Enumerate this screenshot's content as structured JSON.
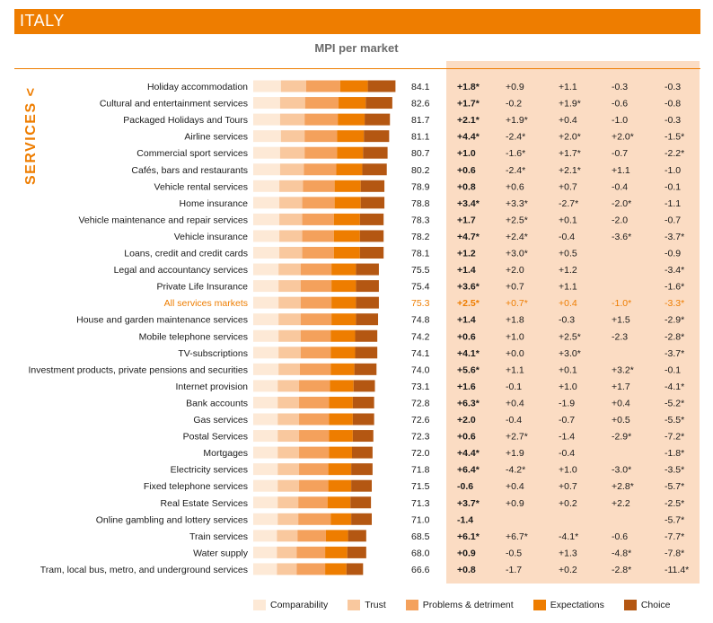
{
  "title": "ITALY",
  "side_label": "SERVICES <",
  "chart_data": {
    "type": "bar",
    "stacked": true,
    "title": "MPI per market",
    "legend_position": "bottom",
    "series_names": [
      "Comparability",
      "Trust",
      "Problems & detriment",
      "Expectations",
      "Choice"
    ],
    "colors": [
      "#fde9d6",
      "#f9c89e",
      "#f4a15c",
      "#ee7d00",
      "#b45712"
    ],
    "highlight_color": "#ee7d00",
    "categories": [
      {
        "label": "Holiday accommodation",
        "mpi": "84.1",
        "segments": [
          17.5,
          16.0,
          21.5,
          17.5,
          17.5
        ],
        "changes": [
          "+1.8*",
          "+0.9",
          "+1.1",
          "-0.3",
          "-0.3"
        ]
      },
      {
        "label": "Cultural and entertainment services",
        "mpi": "82.6",
        "segments": [
          17.0,
          15.8,
          21.2,
          17.2,
          16.8
        ],
        "changes": [
          "+1.7*",
          "-0.2",
          "+1.9*",
          "-0.6",
          "-0.8"
        ]
      },
      {
        "label": "Packaged Holidays and Tours",
        "mpi": "81.7",
        "segments": [
          17.0,
          15.5,
          21.0,
          17.0,
          16.0
        ],
        "changes": [
          "+2.1*",
          "+1.9*",
          "+0.4",
          "-1.0",
          "-0.3"
        ]
      },
      {
        "label": "Airline services",
        "mpi": "81.1",
        "segments": [
          17.5,
          15.0,
          20.5,
          17.0,
          16.0
        ],
        "changes": [
          "+4.4*",
          "-2.4*",
          "+2.0*",
          "+2.0*",
          "-1.5*"
        ]
      },
      {
        "label": "Commercial sport services",
        "mpi": "80.7",
        "segments": [
          17.0,
          15.5,
          20.5,
          16.5,
          15.5
        ],
        "changes": [
          "+1.0",
          "-1.6*",
          "+1.7*",
          "-0.7",
          "-2.2*"
        ]
      },
      {
        "label": "Cafés, bars and restaurants",
        "mpi": "80.2",
        "segments": [
          17.0,
          15.0,
          20.5,
          16.5,
          15.5
        ],
        "changes": [
          "+0.6",
          "-2.4*",
          "+2.1*",
          "+1.1",
          "-1.0"
        ]
      },
      {
        "label": "Vehicle rental services",
        "mpi": "78.9",
        "segments": [
          16.5,
          15.0,
          20.0,
          16.5,
          15.0
        ],
        "changes": [
          "+0.8",
          "+0.6",
          "+0.7",
          "-0.4",
          "-0.1"
        ]
      },
      {
        "label": "Home insurance",
        "mpi": "78.8",
        "segments": [
          16.5,
          14.5,
          20.5,
          16.5,
          15.0
        ],
        "changes": [
          "+3.4*",
          "+3.3*",
          "-2.7*",
          "-2.0*",
          "-1.1"
        ]
      },
      {
        "label": "Vehicle maintenance and repair services",
        "mpi": "78.3",
        "segments": [
          16.5,
          14.5,
          20.0,
          16.5,
          15.0
        ],
        "changes": [
          "+1.7",
          "+2.5*",
          "+0.1",
          "-2.0",
          "-0.7"
        ]
      },
      {
        "label": "Vehicle insurance",
        "mpi": "78.2",
        "segments": [
          16.5,
          14.5,
          20.0,
          16.5,
          15.0
        ],
        "changes": [
          "+4.7*",
          "+2.4*",
          "-0.4",
          "-3.6*",
          "-3.7*"
        ]
      },
      {
        "label": "Loans, credit and credit cards",
        "mpi": "78.1",
        "segments": [
          16.5,
          14.5,
          20.0,
          16.5,
          15.0
        ],
        "changes": [
          "+1.2",
          "+3.0*",
          "+0.5",
          "",
          "-0.9"
        ]
      },
      {
        "label": "Legal and accountancy services",
        "mpi": "75.5",
        "segments": [
          16.0,
          14.0,
          19.5,
          15.5,
          14.5
        ],
        "changes": [
          "+1.4",
          "+2.0",
          "+1.2",
          "",
          "-3.4*"
        ]
      },
      {
        "label": "Private Life Insurance",
        "mpi": "75.4",
        "segments": [
          16.0,
          14.0,
          19.5,
          15.5,
          14.5
        ],
        "changes": [
          "+3.6*",
          "+0.7",
          "+1.1",
          "",
          "-1.6*"
        ]
      },
      {
        "label": "All services markets",
        "mpi": "75.3",
        "segments": [
          16.0,
          14.0,
          19.5,
          15.5,
          14.5
        ],
        "changes": [
          "+2.5*",
          "+0.7*",
          "+0.4",
          "-1.0*",
          "-3.3*"
        ],
        "highlight": true
      },
      {
        "label": "House and garden maintenance services",
        "mpi": "74.8",
        "segments": [
          16.0,
          14.0,
          19.5,
          15.5,
          14.0
        ],
        "changes": [
          "+1.4",
          "+1.8",
          "-0.3",
          "+1.5",
          "-2.9*"
        ]
      },
      {
        "label": "Mobile telephone services",
        "mpi": "74.2",
        "segments": [
          16.0,
          14.0,
          19.0,
          15.5,
          14.0
        ],
        "changes": [
          "+0.6",
          "+1.0",
          "+2.5*",
          "-2.3",
          "-2.8*"
        ]
      },
      {
        "label": "TV-subscriptions",
        "mpi": "74.1",
        "segments": [
          16.0,
          14.0,
          19.0,
          15.5,
          14.0
        ],
        "changes": [
          "+4.1*",
          "+0.0",
          "+3.0*",
          "",
          "-3.7*"
        ]
      },
      {
        "label": "Investment products, private pensions and securities",
        "mpi": "74.0",
        "segments": [
          16.0,
          13.5,
          19.5,
          15.0,
          14.0
        ],
        "changes": [
          "+5.6*",
          "+1.1",
          "+0.1",
          "+3.2*",
          "-0.1"
        ]
      },
      {
        "label": "Internet provision",
        "mpi": "73.1",
        "segments": [
          15.5,
          13.5,
          19.5,
          15.0,
          13.5
        ],
        "changes": [
          "+1.6",
          "-0.1",
          "+1.0",
          "+1.7",
          "-4.1*"
        ]
      },
      {
        "label": "Bank accounts",
        "mpi": "72.8",
        "segments": [
          15.5,
          13.5,
          19.0,
          15.0,
          13.5
        ],
        "changes": [
          "+6.3*",
          "+0.4",
          "-1.9",
          "+0.4",
          "-5.2*"
        ]
      },
      {
        "label": "Gas services",
        "mpi": "72.6",
        "segments": [
          15.5,
          13.5,
          19.0,
          15.0,
          13.5
        ],
        "changes": [
          "+2.0",
          "-0.4",
          "-0.7",
          "+0.5",
          "-5.5*"
        ]
      },
      {
        "label": "Postal Services",
        "mpi": "72.3",
        "segments": [
          15.5,
          13.5,
          19.0,
          15.0,
          13.0
        ],
        "changes": [
          "+0.6",
          "+2.7*",
          "-1.4",
          "-2.9*",
          "-7.2*"
        ]
      },
      {
        "label": "Mortgages",
        "mpi": "72.0",
        "segments": [
          15.5,
          13.5,
          19.0,
          14.5,
          13.0
        ],
        "changes": [
          "+4.4*",
          "+1.9",
          "-0.4",
          "",
          "-1.8*"
        ]
      },
      {
        "label": "Electricity services",
        "mpi": "71.8",
        "segments": [
          15.5,
          13.5,
          18.5,
          14.5,
          13.5
        ],
        "changes": [
          "+6.4*",
          "-4.2*",
          "+1.0",
          "-3.0*",
          "-3.5*"
        ]
      },
      {
        "label": "Fixed telephone services",
        "mpi": "71.5",
        "segments": [
          15.5,
          13.5,
          18.5,
          14.5,
          13.0
        ],
        "changes": [
          "-0.6",
          "+0.4",
          "+0.7",
          "+2.8*",
          "-5.7*"
        ]
      },
      {
        "label": "Real Estate Services",
        "mpi": "71.3",
        "segments": [
          15.5,
          13.0,
          18.5,
          14.5,
          13.0
        ],
        "changes": [
          "+3.7*",
          "+0.9",
          "+0.2",
          "+2.2",
          "-2.5*"
        ]
      },
      {
        "label": "Online gambling and lottery services",
        "mpi": "71.0",
        "segments": [
          15.5,
          13.0,
          20.5,
          13.0,
          13.0
        ],
        "changes": [
          "-1.4",
          "",
          "",
          "",
          "-5.7*"
        ]
      },
      {
        "label": "Train services",
        "mpi": "68.5",
        "segments": [
          15.0,
          13.0,
          18.0,
          14.0,
          11.5
        ],
        "changes": [
          "+6.1*",
          "+6.7*",
          "-4.1*",
          "-0.6",
          "-7.7*"
        ]
      },
      {
        "label": "Water supply",
        "mpi": "68.0",
        "segments": [
          15.0,
          12.5,
          18.0,
          14.0,
          12.0
        ],
        "changes": [
          "+0.9",
          "-0.5",
          "+1.3",
          "-4.8*",
          "-7.8*"
        ]
      },
      {
        "label": "Tram, local bus, metro, and underground services",
        "mpi": "66.6",
        "segments": [
          15.0,
          12.5,
          18.0,
          13.5,
          10.5
        ],
        "changes": [
          "+0.8",
          "-1.7",
          "+0.2",
          "-2.8*",
          "-11.4*"
        ]
      }
    ]
  }
}
